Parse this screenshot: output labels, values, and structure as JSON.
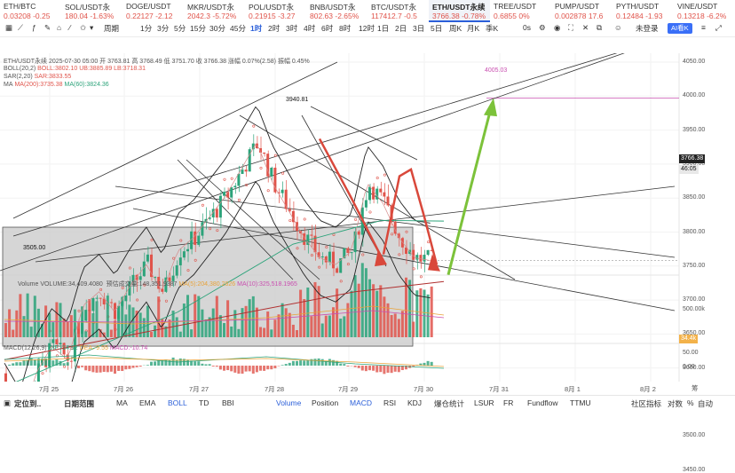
{
  "tickers": [
    {
      "name": "ETH/BTC",
      "price": "0.03208 -0.25"
    },
    {
      "name": "SOL/USDT永",
      "price": "180.04 -1.63%"
    },
    {
      "name": "DOGE/USDT",
      "price": "0.22127 -2.12"
    },
    {
      "name": "MKR/USDT永",
      "price": "2042.3 -5.72%"
    },
    {
      "name": "POL/USDT永",
      "price": "0.21915 -3.27"
    },
    {
      "name": "BNB/USDT永",
      "price": "802.63 -2.65%"
    },
    {
      "name": "BTC/USDT永",
      "price": "117412.7 -0.5"
    },
    {
      "name": "ETH/USDT永续",
      "price": "3766.38 -0.78%"
    },
    {
      "name": "TREE/USDT",
      "price": "0.6855 0%"
    },
    {
      "name": "PUMP/USDT",
      "price": "0.002878 17.6"
    },
    {
      "name": "PYTH/USDT",
      "price": "0.12484 -1.93"
    },
    {
      "name": "VINE/USDT",
      "price": "0.13218 -6.2%"
    }
  ],
  "toolbar": {
    "left_items": [
      "分时",
      "1分",
      "3分",
      "5分",
      "15分",
      "30分",
      "45分",
      "1时",
      "2时",
      "3时",
      "4时",
      "6时",
      "8时",
      "12时",
      "1日",
      "2日",
      "3日",
      "5日",
      "周K",
      "月K",
      "季K"
    ],
    "selected": "1时",
    "period_label": "周期",
    "right_labels": [
      "0s",
      "未登录"
    ],
    "ai_label": "AI看K",
    "icon_names": [
      "grid-icon",
      "draw-icon",
      "fx-icon",
      "pen-icon",
      "star-icon",
      "dollar-icon",
      "settings-icon",
      "camera-icon",
      "fullscreen-icon",
      "close-icon"
    ]
  },
  "legend": {
    "symbol_line": "ETH/USDT永续  2025-07-30 05:00  开 3763.81  高 3768.49  低 3751.70  收 3766.38  涨幅 0.07%(2.58)  振幅 0.45%",
    "boll": "BOLL(20,2)",
    "boll_vals": "BOLL:3802.10  UB:3885.89  LB:3718.31",
    "sar_label": "SAR(2,20)",
    "sar_val": "SAR:3833.55",
    "ma_label": "MA",
    "ma200": "MA(200):3735.38",
    "ma60": "MA(60):3824.36"
  },
  "annotations": {
    "high": "3940.81",
    "low": "3505.00",
    "target": "4005.03"
  },
  "price_axis": [
    "4050.00",
    "4000.00",
    "3950.00",
    "3900.00",
    "3850.00",
    "3800.00",
    "3750.00",
    "3700.00",
    "3650.00",
    "3600.00",
    "3550.00",
    "3500.00",
    "3450.00"
  ],
  "price_tag": {
    "value": "3766.38",
    "countdown": "46:05"
  },
  "volume": {
    "title": "Volume",
    "value": "VOLUME:34,409.4080",
    "estimated": "预估成交量:148,351.9387",
    "ma5": "MA(5):204,380.2826",
    "ma10": "MA(10):325,518.1965",
    "axis_label": "500.00k",
    "tag": "34.4k"
  },
  "macd": {
    "title": "MACD(12,26,9)",
    "dif": "DIF:-14.92",
    "dea": "DEA:-9.55",
    "macd": "MACD:-10.74",
    "axis": [
      "50.00",
      "0.00"
    ]
  },
  "time_axis": [
    "7月 25",
    "7月 26",
    "7月 27",
    "7月 28",
    "7月 29",
    "7月 30",
    "7月 31",
    "8月 1",
    "8月 2"
  ],
  "time_axis_right": "筹",
  "bottom_bar": {
    "left": [
      "定位到..",
      "日期范围"
    ],
    "indicators": [
      "MA",
      "EMA",
      "BOLL",
      "TD",
      "BBI",
      "Volume",
      "Position",
      "MACD",
      "RSI",
      "KDJ",
      "爆仓统计",
      "LSUR",
      "FR",
      "Fundflow",
      "TTMU"
    ],
    "selected": [
      "BOLL",
      "Volume",
      "MACD"
    ],
    "right": [
      "社区指标",
      "对数",
      "%",
      "自动"
    ]
  },
  "colors": {
    "up": "#2ca37a",
    "down": "#e0544b",
    "accent": "#2b5fd9",
    "arrow_green": "#7cc23a",
    "arrow_red": "#d9483b"
  }
}
